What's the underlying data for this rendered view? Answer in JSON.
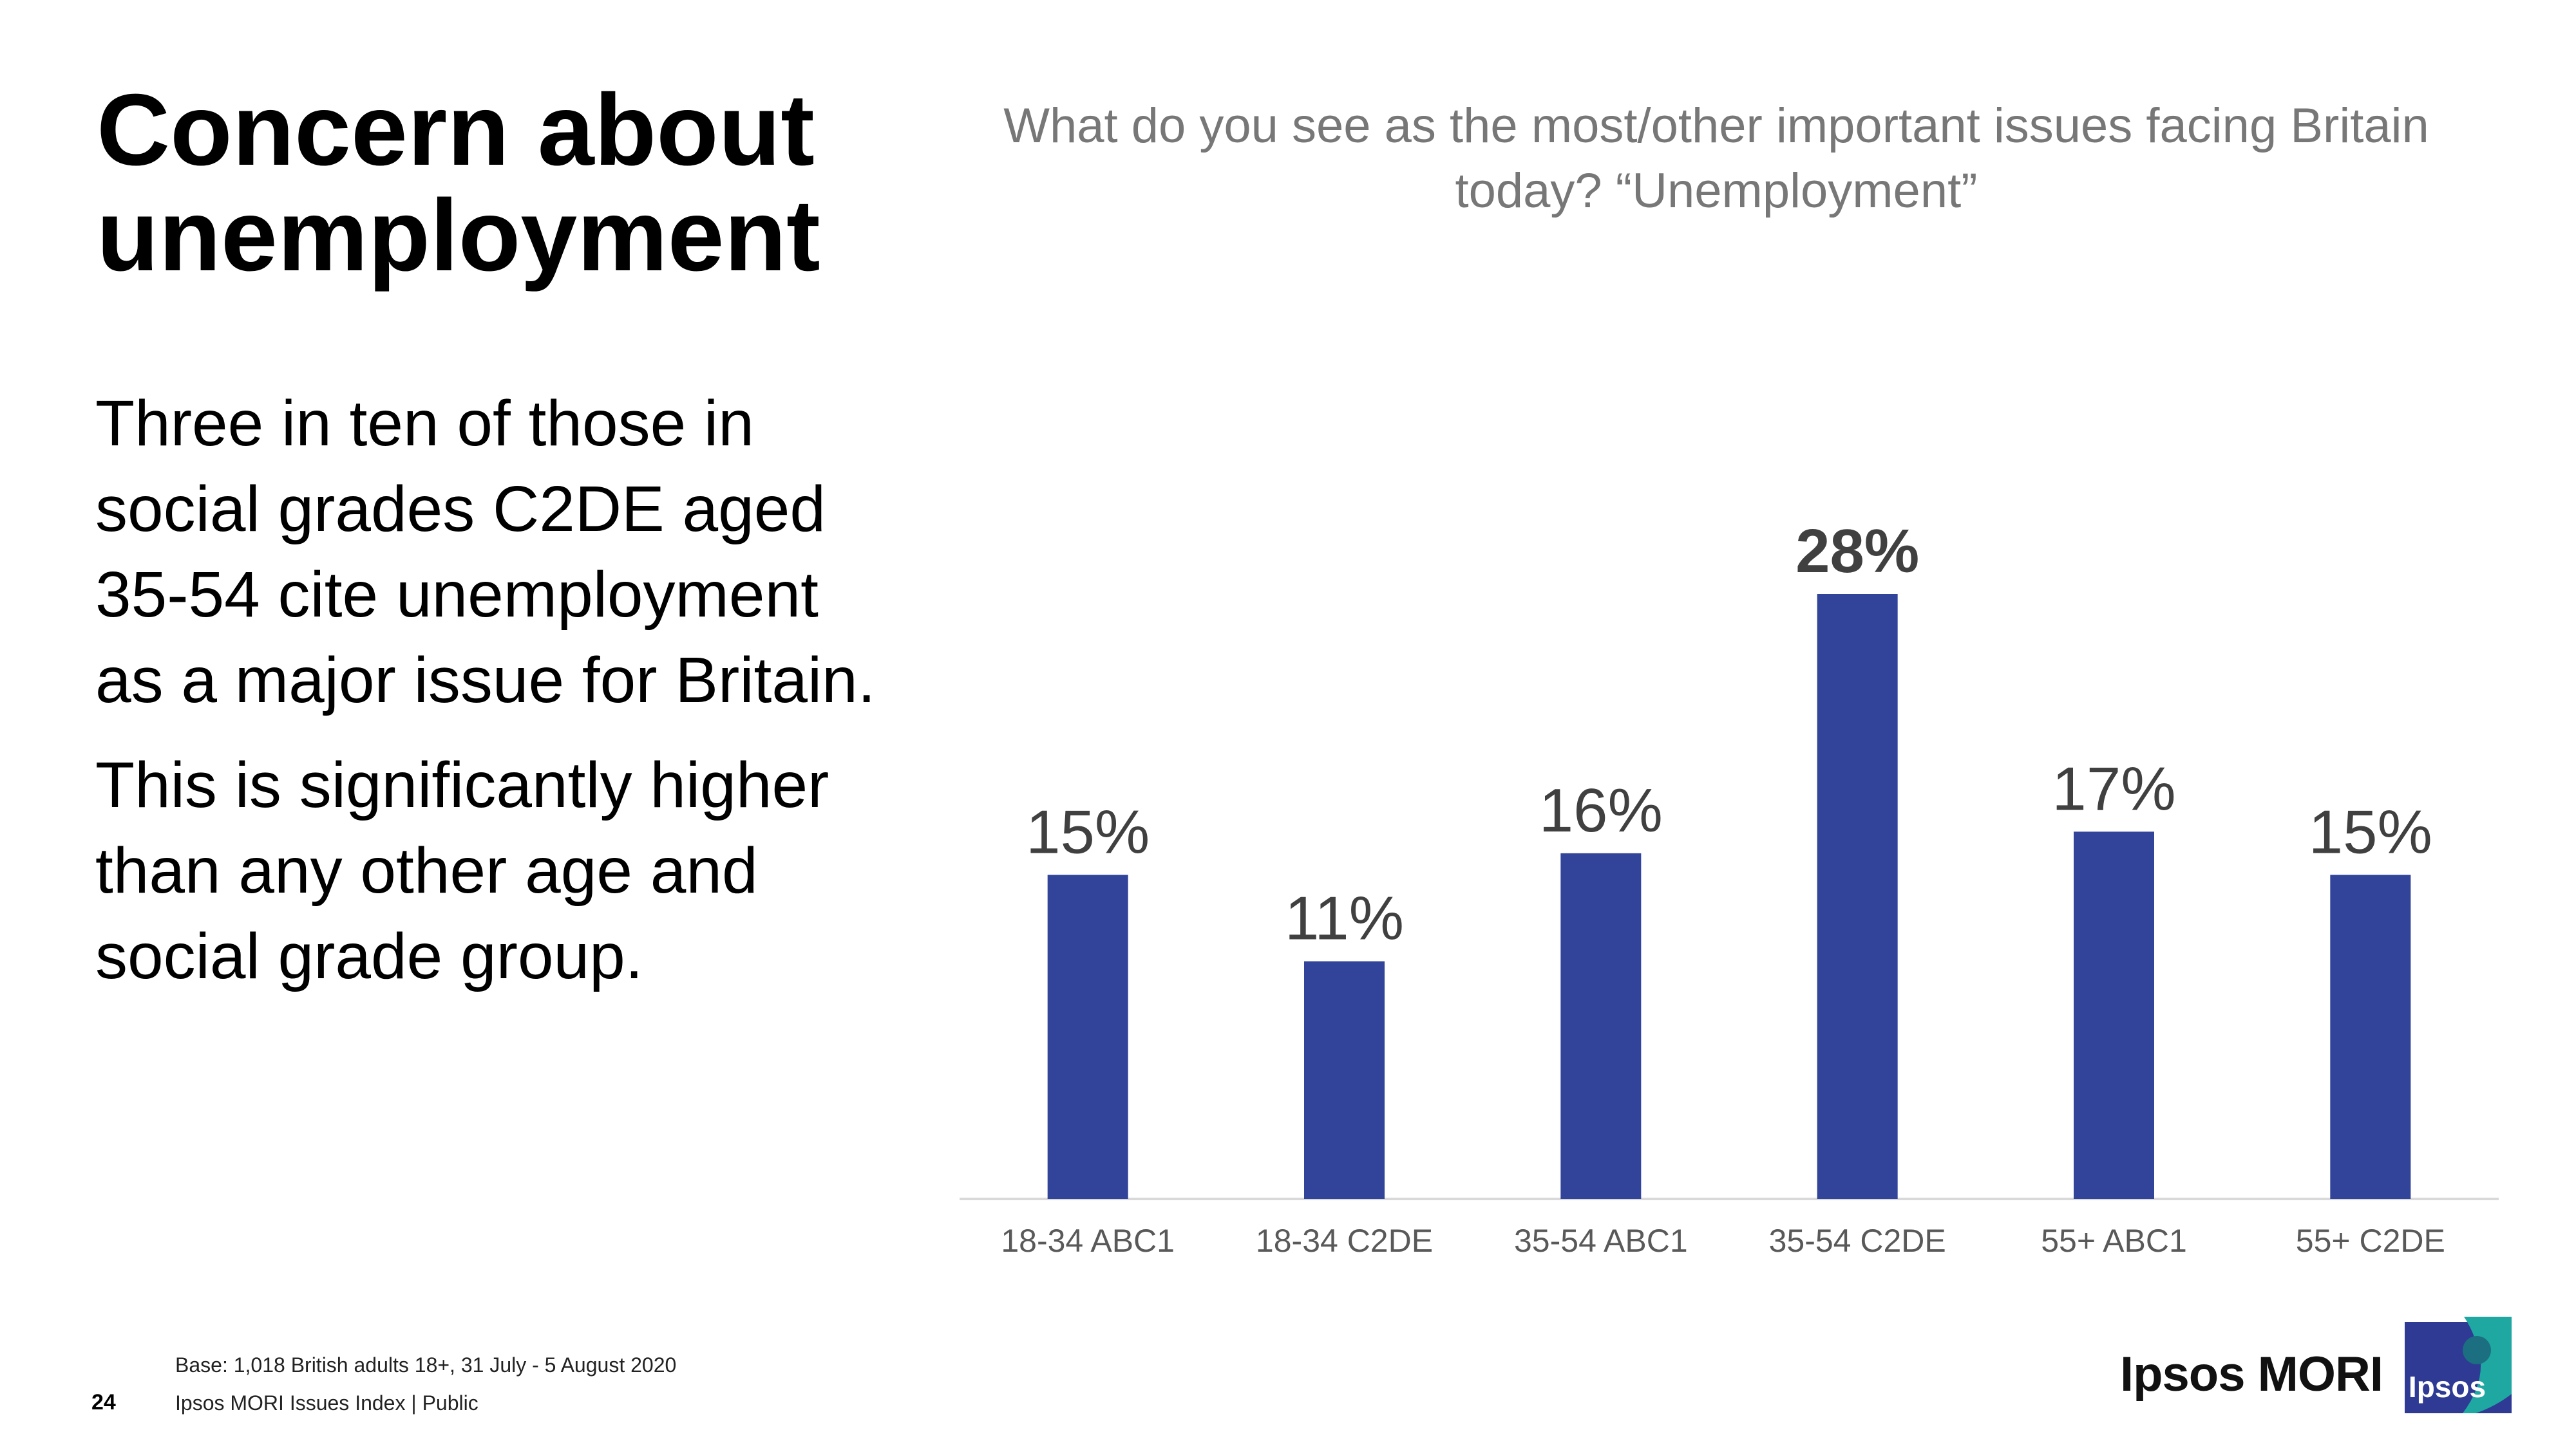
{
  "slide": {
    "title": "Concern about unemployment",
    "body": [
      "Three in ten of those in social grades C2DE aged 35-54 cite unemployment as a major issue for Britain.",
      "This is significantly higher than any other age and social grade group."
    ],
    "question": "What do you see as the most/other important issues facing Britain today? “Unemployment”"
  },
  "chart_data": {
    "type": "bar",
    "categories": [
      "18-34 ABC1",
      "18-34 C2DE",
      "35-54 ABC1",
      "35-54 C2DE",
      "55+ ABC1",
      "55+ C2DE"
    ],
    "values": [
      15,
      11,
      16,
      28,
      17,
      15
    ],
    "labels": [
      "15%",
      "11%",
      "16%",
      "28%",
      "17%",
      "15%"
    ],
    "highlight_index": 3,
    "unit": "%",
    "ylim": [
      0,
      28
    ],
    "grid": false,
    "legend": "none",
    "bar_color": "#31449A",
    "axis_color": "#D9D9D9",
    "label_color": "#404040"
  },
  "footer": {
    "base": "Base: 1,018 British adults 18+, 31 July - 5 August 2020",
    "page": "24",
    "source": "Ipsos MORI Issues Index | Public"
  },
  "brand": {
    "name": "Ipsos MORI",
    "logo_text": "Ipsos",
    "logo_colors": [
      "#2E3A93",
      "#1FA7A2"
    ]
  }
}
